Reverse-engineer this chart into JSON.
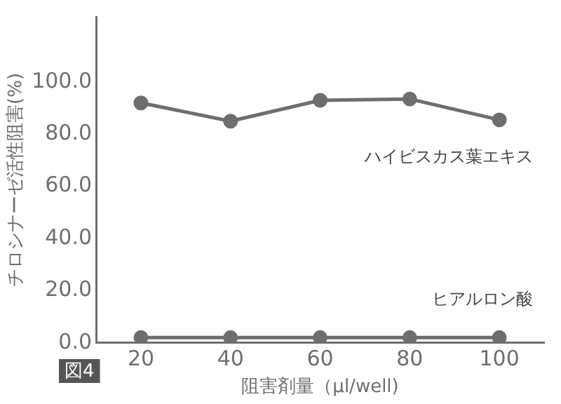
{
  "chart_data": {
    "type": "line",
    "xlabel": "阻害剤量（µl/well)",
    "ylabel": "チロシナーゼ活性阻害(%)",
    "annotations": [
      "図4"
    ],
    "x": [
      20,
      40,
      60,
      80,
      100
    ],
    "series": [
      {
        "name": "ハイビスカス葉エキス",
        "color": "#6e6e6e",
        "values": [
          92,
          85,
          93,
          93.5,
          85.5
        ]
      },
      {
        "name": "ヒアルロン酸",
        "color": "#6e6e6e",
        "values": [
          2,
          2,
          2,
          2,
          2
        ]
      }
    ],
    "xlim": [
      10,
      110
    ],
    "xticks": [
      20,
      40,
      60,
      80,
      100
    ],
    "ylim": [
      0,
      125
    ],
    "yticks": [
      {
        "value": 0,
        "label": "0.0"
      },
      {
        "value": 20,
        "label": "20.0"
      },
      {
        "value": 40,
        "label": "40.0"
      },
      {
        "value": 60,
        "label": "60.0"
      },
      {
        "value": 80,
        "label": "80.0"
      },
      {
        "value": 100,
        "label": "100.0"
      }
    ],
    "grid": false,
    "legend": false,
    "marker": "circle",
    "line_style": "solid"
  }
}
